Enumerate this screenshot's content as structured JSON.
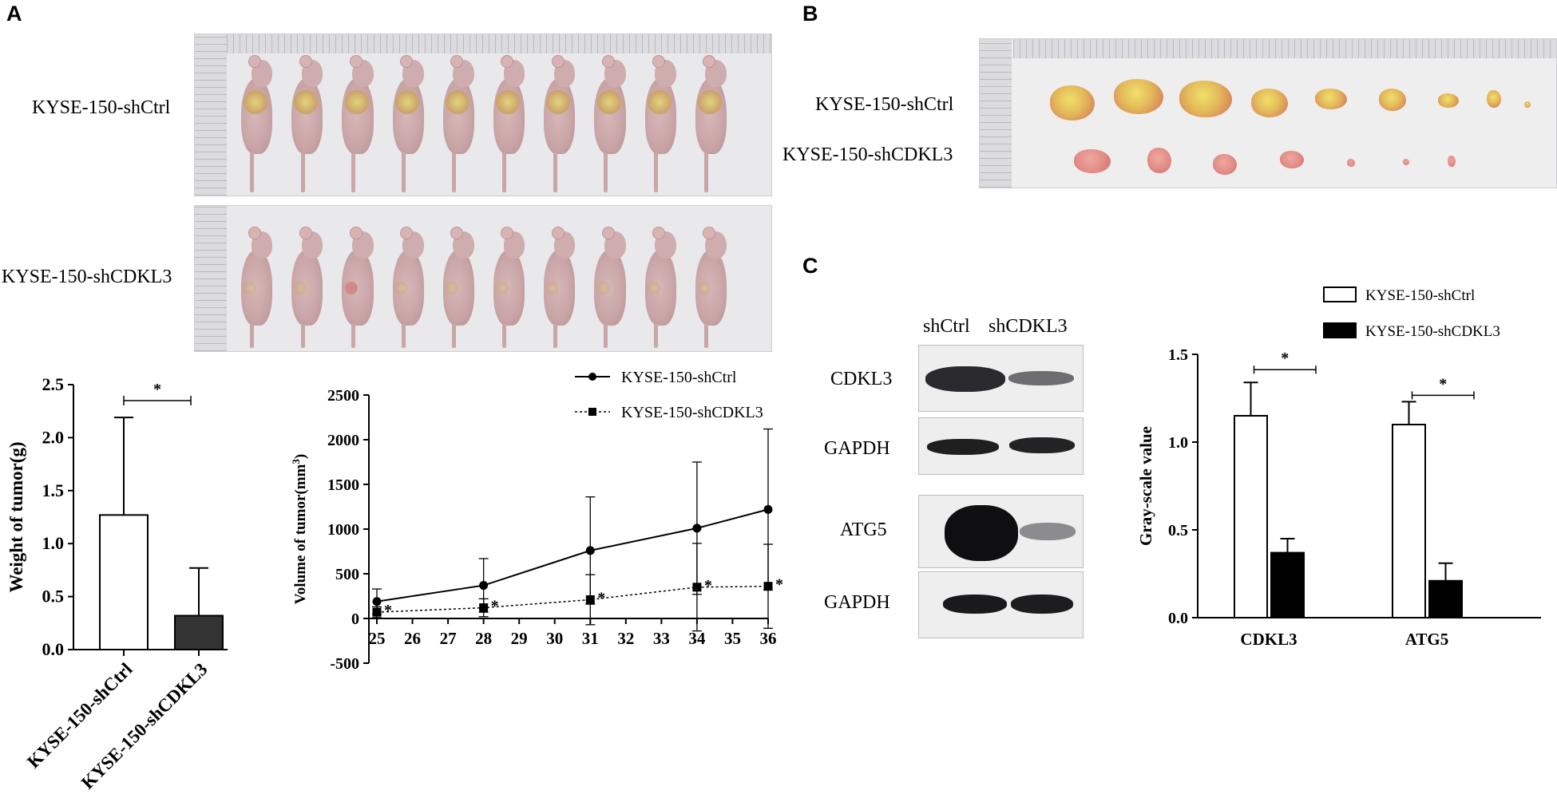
{
  "panels": {
    "a": "A",
    "b": "B",
    "c": "C"
  },
  "photoA": {
    "row1": "KYSE-150-shCtrl",
    "row2": "KYSE-150-shCDKL3"
  },
  "photoB": {
    "row1": "KYSE-150-shCtrl",
    "row2": "KYSE-150-shCDKL3"
  },
  "blot": {
    "lanes": [
      "shCtrl",
      "shCDKL3"
    ],
    "rows": [
      "CDKL3",
      "GAPDH",
      "ATG5",
      "GAPDH"
    ]
  },
  "chart_data": [
    {
      "id": "weight",
      "type": "bar",
      "categories": [
        "KYSE-150-shCtrl",
        "KYSE-150-shCDKL3"
      ],
      "values": [
        1.27,
        0.32
      ],
      "errors": [
        0.92,
        0.45
      ],
      "colors": [
        "#ffffff",
        "#333333"
      ],
      "ylabel": "Weight of tumor(g)",
      "ylim": [
        0,
        2.5
      ],
      "yticks": [
        0.0,
        0.5,
        1.0,
        1.5,
        2.0,
        2.5
      ],
      "significance": "*"
    },
    {
      "id": "volume",
      "type": "line",
      "x": [
        25,
        28,
        31,
        34,
        36
      ],
      "xticks": [
        25,
        26,
        27,
        28,
        29,
        30,
        31,
        32,
        33,
        34,
        35,
        36
      ],
      "ylabel": "Volume of tumor(mm",
      "ylabel_sup": "3",
      "ylabel_close": ")",
      "ylim": [
        -500,
        2500
      ],
      "yticks": [
        -500,
        0,
        500,
        1000,
        1500,
        2000,
        2500
      ],
      "series": [
        {
          "name": "KYSE-150-shCtrl",
          "values": [
            190,
            370,
            760,
            1010,
            1220
          ],
          "errors": [
            140,
            300,
            600,
            740,
            900
          ]
        },
        {
          "name": "KYSE-150-shCDKL3",
          "values": [
            70,
            120,
            210,
            350,
            360
          ],
          "errors": [
            60,
            100,
            280,
            490,
            470
          ]
        }
      ],
      "significance": "*",
      "legend": "top-right"
    },
    {
      "id": "grayscale",
      "type": "bar",
      "categories": [
        "CDKL3",
        "ATG5"
      ],
      "series": [
        {
          "name": "KYSE-150-shCtrl",
          "values": [
            1.15,
            1.1
          ],
          "errors": [
            0.19,
            0.13
          ],
          "color": "#ffffff"
        },
        {
          "name": "KYSE-150-shCDKL3",
          "values": [
            0.37,
            0.21
          ],
          "errors": [
            0.08,
            0.1
          ],
          "color": "#000000"
        }
      ],
      "ylabel": "Gray-scale value",
      "ylim": [
        0,
        1.5
      ],
      "yticks": [
        "0.0",
        "0.5",
        "1.0",
        "1.5"
      ],
      "significance": "*",
      "legend": "top"
    }
  ]
}
